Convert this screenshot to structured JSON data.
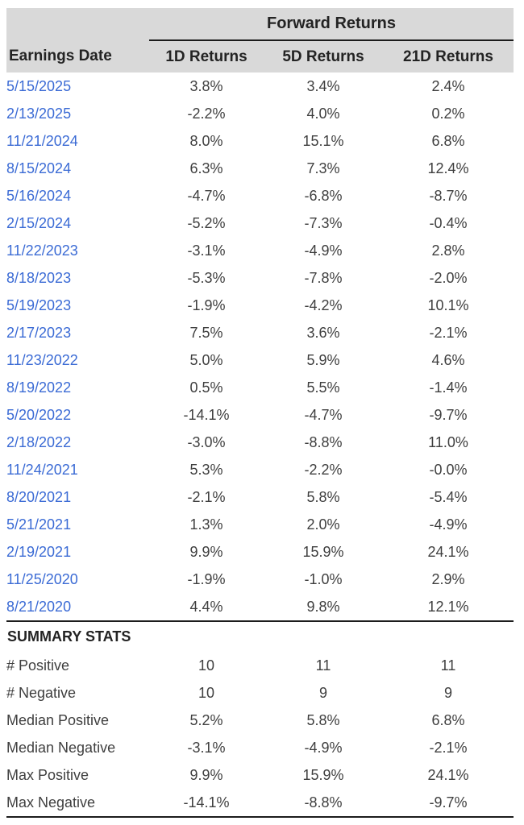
{
  "chart_data": {
    "type": "table",
    "title": "Forward Returns",
    "columns": [
      "Earnings Date",
      "1D Returns",
      "5D Returns",
      "21D Returns"
    ],
    "rows": [
      [
        "5/15/2025",
        "3.8%",
        "3.4%",
        "2.4%"
      ],
      [
        "2/13/2025",
        "-2.2%",
        "4.0%",
        "0.2%"
      ],
      [
        "11/21/2024",
        "8.0%",
        "15.1%",
        "6.8%"
      ],
      [
        "8/15/2024",
        "6.3%",
        "7.3%",
        "12.4%"
      ],
      [
        "5/16/2024",
        "-4.7%",
        "-6.8%",
        "-8.7%"
      ],
      [
        "2/15/2024",
        "-5.2%",
        "-7.3%",
        "-0.4%"
      ],
      [
        "11/22/2023",
        "-3.1%",
        "-4.9%",
        "2.8%"
      ],
      [
        "8/18/2023",
        "-5.3%",
        "-7.8%",
        "-2.0%"
      ],
      [
        "5/19/2023",
        "-1.9%",
        "-4.2%",
        "10.1%"
      ],
      [
        "2/17/2023",
        "7.5%",
        "3.6%",
        "-2.1%"
      ],
      [
        "11/23/2022",
        "5.0%",
        "5.9%",
        "4.6%"
      ],
      [
        "8/19/2022",
        "0.5%",
        "5.5%",
        "-1.4%"
      ],
      [
        "5/20/2022",
        "-14.1%",
        "-4.7%",
        "-9.7%"
      ],
      [
        "2/18/2022",
        "-3.0%",
        "-8.8%",
        "11.0%"
      ],
      [
        "11/24/2021",
        "5.3%",
        "-2.2%",
        "-0.0%"
      ],
      [
        "8/20/2021",
        "-2.1%",
        "5.8%",
        "-5.4%"
      ],
      [
        "5/21/2021",
        "1.3%",
        "2.0%",
        "-4.9%"
      ],
      [
        "2/19/2021",
        "9.9%",
        "15.9%",
        "24.1%"
      ],
      [
        "11/25/2020",
        "-1.9%",
        "-1.0%",
        "2.9%"
      ],
      [
        "8/21/2020",
        "4.4%",
        "9.8%",
        "12.1%"
      ]
    ],
    "summary_title": "SUMMARY STATS",
    "summary_rows": [
      [
        "# Positive",
        "10",
        "11",
        "11"
      ],
      [
        "# Negative",
        "10",
        "9",
        "9"
      ],
      [
        "Median Positive",
        "5.2%",
        "5.8%",
        "6.8%"
      ],
      [
        "Median Negative",
        "-3.1%",
        "-4.9%",
        "-2.1%"
      ],
      [
        "Max Positive",
        "9.9%",
        "15.9%",
        "24.1%"
      ],
      [
        "Max Negative",
        "-14.1%",
        "-8.8%",
        "-9.7%"
      ]
    ]
  },
  "colors": {
    "header_bg": "#d9d9d9",
    "date_link": "#3b6bd5",
    "value_text": "#3f3f3f",
    "header_text": "#232323",
    "rule": "#1c1c1c"
  }
}
